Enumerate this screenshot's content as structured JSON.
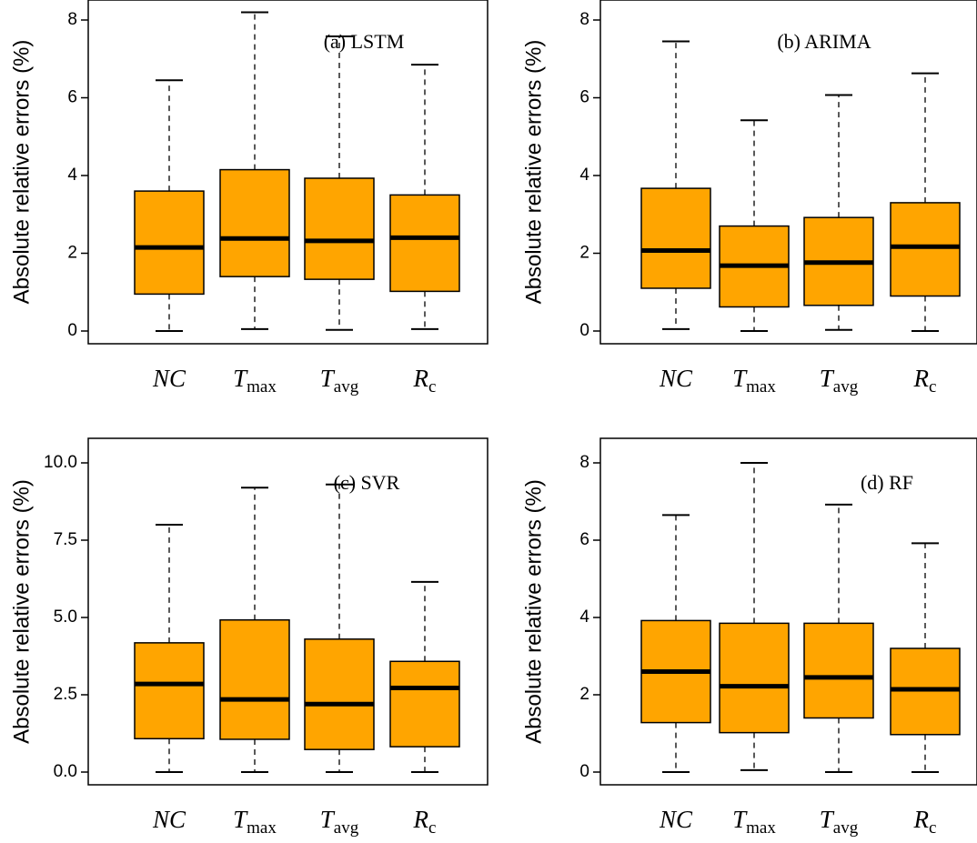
{
  "ylabel": "Absolute relative errors (%)",
  "chart_data": [
    {
      "type": "boxplot",
      "title": "(a) LSTM",
      "categories": [
        {
          "main": "NC",
          "sub": ""
        },
        {
          "main": "T",
          "sub": "max"
        },
        {
          "main": "T",
          "sub": "avg"
        },
        {
          "main": "R",
          "sub": "c"
        }
      ],
      "yticks": [
        "0",
        "2",
        "4",
        "6",
        "8"
      ],
      "ylim": [
        0,
        8
      ],
      "boxes": [
        {
          "min": 0.0,
          "q1": 0.95,
          "median": 2.15,
          "q3": 3.6,
          "max": 6.45
        },
        {
          "min": 0.05,
          "q1": 1.4,
          "median": 2.38,
          "q3": 4.15,
          "max": 8.2
        },
        {
          "min": 0.03,
          "q1": 1.33,
          "median": 2.32,
          "q3": 3.93,
          "max": 7.58
        },
        {
          "min": 0.05,
          "q1": 1.02,
          "median": 2.4,
          "q3": 3.5,
          "max": 6.85
        }
      ],
      "fill": "#FFA500"
    },
    {
      "type": "boxplot",
      "title": "(b) ARIMA",
      "categories": [
        {
          "main": "NC",
          "sub": ""
        },
        {
          "main": "T",
          "sub": "max"
        },
        {
          "main": "T",
          "sub": "avg"
        },
        {
          "main": "R",
          "sub": "c"
        }
      ],
      "yticks": [
        "0",
        "2",
        "4",
        "6",
        "8"
      ],
      "ylim": [
        0,
        8
      ],
      "boxes": [
        {
          "min": 0.05,
          "q1": 1.1,
          "median": 2.07,
          "q3": 3.67,
          "max": 7.45
        },
        {
          "min": 0.0,
          "q1": 0.62,
          "median": 1.68,
          "q3": 2.7,
          "max": 5.42
        },
        {
          "min": 0.03,
          "q1": 0.66,
          "median": 1.76,
          "q3": 2.92,
          "max": 6.07
        },
        {
          "min": 0.0,
          "q1": 0.9,
          "median": 2.17,
          "q3": 3.3,
          "max": 6.63
        }
      ],
      "fill": "#FFA500"
    },
    {
      "type": "boxplot",
      "title": "(c) SVR",
      "categories": [
        {
          "main": "NC",
          "sub": ""
        },
        {
          "main": "T",
          "sub": "max"
        },
        {
          "main": "T",
          "sub": "avg"
        },
        {
          "main": "R",
          "sub": "c"
        }
      ],
      "yticks": [
        "0.0",
        "2.5",
        "5.0",
        "7.5",
        "10.0"
      ],
      "ylim": [
        0,
        10
      ],
      "boxes": [
        {
          "min": 0.0,
          "q1": 1.08,
          "median": 2.85,
          "q3": 4.18,
          "max": 8.0
        },
        {
          "min": 0.0,
          "q1": 1.06,
          "median": 2.35,
          "q3": 4.92,
          "max": 9.2
        },
        {
          "min": 0.0,
          "q1": 0.73,
          "median": 2.2,
          "q3": 4.3,
          "max": 9.3
        },
        {
          "min": 0.0,
          "q1": 0.82,
          "median": 2.72,
          "q3": 3.58,
          "max": 6.15
        }
      ],
      "fill": "#FFA500"
    },
    {
      "type": "boxplot",
      "title": "(d) RF",
      "categories": [
        {
          "main": "NC",
          "sub": ""
        },
        {
          "main": "T",
          "sub": "max"
        },
        {
          "main": "T",
          "sub": "avg"
        },
        {
          "main": "R",
          "sub": "c"
        }
      ],
      "yticks": [
        "0",
        "2",
        "4",
        "6",
        "8"
      ],
      "ylim": [
        0,
        8
      ],
      "boxes": [
        {
          "min": 0.0,
          "q1": 1.28,
          "median": 2.6,
          "q3": 3.92,
          "max": 6.65
        },
        {
          "min": 0.05,
          "q1": 1.02,
          "median": 2.22,
          "q3": 3.85,
          "max": 8.0
        },
        {
          "min": 0.0,
          "q1": 1.4,
          "median": 2.45,
          "q3": 3.85,
          "max": 6.92
        },
        {
          "min": 0.0,
          "q1": 0.97,
          "median": 2.14,
          "q3": 3.2,
          "max": 5.92
        }
      ],
      "fill": "#FFA500"
    }
  ]
}
